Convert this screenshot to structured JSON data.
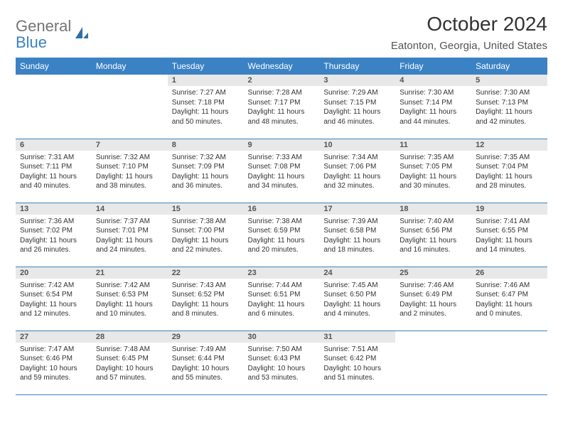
{
  "brand": {
    "line1": "General",
    "line2": "Blue"
  },
  "title": "October 2024",
  "location": "Eatonton, Georgia, United States",
  "colors": {
    "header_bg": "#3b82c4",
    "header_text": "#ffffff",
    "daynum_bg": "#e8e8e8",
    "border": "#3b82c4",
    "body_text": "#333333",
    "logo_gray": "#757575",
    "logo_blue": "#3b82c4"
  },
  "weekdays": [
    "Sunday",
    "Monday",
    "Tuesday",
    "Wednesday",
    "Thursday",
    "Friday",
    "Saturday"
  ],
  "leading_blanks": 2,
  "days": [
    {
      "n": "1",
      "sr": "Sunrise: 7:27 AM",
      "ss": "Sunset: 7:18 PM",
      "dl1": "Daylight: 11 hours",
      "dl2": "and 50 minutes."
    },
    {
      "n": "2",
      "sr": "Sunrise: 7:28 AM",
      "ss": "Sunset: 7:17 PM",
      "dl1": "Daylight: 11 hours",
      "dl2": "and 48 minutes."
    },
    {
      "n": "3",
      "sr": "Sunrise: 7:29 AM",
      "ss": "Sunset: 7:15 PM",
      "dl1": "Daylight: 11 hours",
      "dl2": "and 46 minutes."
    },
    {
      "n": "4",
      "sr": "Sunrise: 7:30 AM",
      "ss": "Sunset: 7:14 PM",
      "dl1": "Daylight: 11 hours",
      "dl2": "and 44 minutes."
    },
    {
      "n": "5",
      "sr": "Sunrise: 7:30 AM",
      "ss": "Sunset: 7:13 PM",
      "dl1": "Daylight: 11 hours",
      "dl2": "and 42 minutes."
    },
    {
      "n": "6",
      "sr": "Sunrise: 7:31 AM",
      "ss": "Sunset: 7:11 PM",
      "dl1": "Daylight: 11 hours",
      "dl2": "and 40 minutes."
    },
    {
      "n": "7",
      "sr": "Sunrise: 7:32 AM",
      "ss": "Sunset: 7:10 PM",
      "dl1": "Daylight: 11 hours",
      "dl2": "and 38 minutes."
    },
    {
      "n": "8",
      "sr": "Sunrise: 7:32 AM",
      "ss": "Sunset: 7:09 PM",
      "dl1": "Daylight: 11 hours",
      "dl2": "and 36 minutes."
    },
    {
      "n": "9",
      "sr": "Sunrise: 7:33 AM",
      "ss": "Sunset: 7:08 PM",
      "dl1": "Daylight: 11 hours",
      "dl2": "and 34 minutes."
    },
    {
      "n": "10",
      "sr": "Sunrise: 7:34 AM",
      "ss": "Sunset: 7:06 PM",
      "dl1": "Daylight: 11 hours",
      "dl2": "and 32 minutes."
    },
    {
      "n": "11",
      "sr": "Sunrise: 7:35 AM",
      "ss": "Sunset: 7:05 PM",
      "dl1": "Daylight: 11 hours",
      "dl2": "and 30 minutes."
    },
    {
      "n": "12",
      "sr": "Sunrise: 7:35 AM",
      "ss": "Sunset: 7:04 PM",
      "dl1": "Daylight: 11 hours",
      "dl2": "and 28 minutes."
    },
    {
      "n": "13",
      "sr": "Sunrise: 7:36 AM",
      "ss": "Sunset: 7:02 PM",
      "dl1": "Daylight: 11 hours",
      "dl2": "and 26 minutes."
    },
    {
      "n": "14",
      "sr": "Sunrise: 7:37 AM",
      "ss": "Sunset: 7:01 PM",
      "dl1": "Daylight: 11 hours",
      "dl2": "and 24 minutes."
    },
    {
      "n": "15",
      "sr": "Sunrise: 7:38 AM",
      "ss": "Sunset: 7:00 PM",
      "dl1": "Daylight: 11 hours",
      "dl2": "and 22 minutes."
    },
    {
      "n": "16",
      "sr": "Sunrise: 7:38 AM",
      "ss": "Sunset: 6:59 PM",
      "dl1": "Daylight: 11 hours",
      "dl2": "and 20 minutes."
    },
    {
      "n": "17",
      "sr": "Sunrise: 7:39 AM",
      "ss": "Sunset: 6:58 PM",
      "dl1": "Daylight: 11 hours",
      "dl2": "and 18 minutes."
    },
    {
      "n": "18",
      "sr": "Sunrise: 7:40 AM",
      "ss": "Sunset: 6:56 PM",
      "dl1": "Daylight: 11 hours",
      "dl2": "and 16 minutes."
    },
    {
      "n": "19",
      "sr": "Sunrise: 7:41 AM",
      "ss": "Sunset: 6:55 PM",
      "dl1": "Daylight: 11 hours",
      "dl2": "and 14 minutes."
    },
    {
      "n": "20",
      "sr": "Sunrise: 7:42 AM",
      "ss": "Sunset: 6:54 PM",
      "dl1": "Daylight: 11 hours",
      "dl2": "and 12 minutes."
    },
    {
      "n": "21",
      "sr": "Sunrise: 7:42 AM",
      "ss": "Sunset: 6:53 PM",
      "dl1": "Daylight: 11 hours",
      "dl2": "and 10 minutes."
    },
    {
      "n": "22",
      "sr": "Sunrise: 7:43 AM",
      "ss": "Sunset: 6:52 PM",
      "dl1": "Daylight: 11 hours",
      "dl2": "and 8 minutes."
    },
    {
      "n": "23",
      "sr": "Sunrise: 7:44 AM",
      "ss": "Sunset: 6:51 PM",
      "dl1": "Daylight: 11 hours",
      "dl2": "and 6 minutes."
    },
    {
      "n": "24",
      "sr": "Sunrise: 7:45 AM",
      "ss": "Sunset: 6:50 PM",
      "dl1": "Daylight: 11 hours",
      "dl2": "and 4 minutes."
    },
    {
      "n": "25",
      "sr": "Sunrise: 7:46 AM",
      "ss": "Sunset: 6:49 PM",
      "dl1": "Daylight: 11 hours",
      "dl2": "and 2 minutes."
    },
    {
      "n": "26",
      "sr": "Sunrise: 7:46 AM",
      "ss": "Sunset: 6:47 PM",
      "dl1": "Daylight: 11 hours",
      "dl2": "and 0 minutes."
    },
    {
      "n": "27",
      "sr": "Sunrise: 7:47 AM",
      "ss": "Sunset: 6:46 PM",
      "dl1": "Daylight: 10 hours",
      "dl2": "and 59 minutes."
    },
    {
      "n": "28",
      "sr": "Sunrise: 7:48 AM",
      "ss": "Sunset: 6:45 PM",
      "dl1": "Daylight: 10 hours",
      "dl2": "and 57 minutes."
    },
    {
      "n": "29",
      "sr": "Sunrise: 7:49 AM",
      "ss": "Sunset: 6:44 PM",
      "dl1": "Daylight: 10 hours",
      "dl2": "and 55 minutes."
    },
    {
      "n": "30",
      "sr": "Sunrise: 7:50 AM",
      "ss": "Sunset: 6:43 PM",
      "dl1": "Daylight: 10 hours",
      "dl2": "and 53 minutes."
    },
    {
      "n": "31",
      "sr": "Sunrise: 7:51 AM",
      "ss": "Sunset: 6:42 PM",
      "dl1": "Daylight: 10 hours",
      "dl2": "and 51 minutes."
    }
  ]
}
